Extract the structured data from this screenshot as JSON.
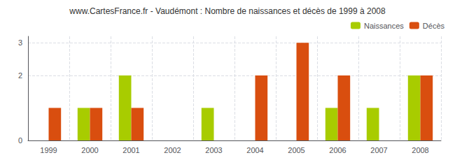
{
  "chart_data": {
    "type": "bar",
    "title": "www.CartesFrance.fr - Vaudémont : Nombre de naissances et décès de 1999 à 2008",
    "categories": [
      "1999",
      "2000",
      "2001",
      "2002",
      "2003",
      "2004",
      "2005",
      "2006",
      "2007",
      "2008"
    ],
    "series": [
      {
        "name": "Naissances",
        "color": "#a8cc00",
        "values": [
          0,
          1,
          2,
          0,
          1,
          0,
          0,
          1,
          1,
          2
        ]
      },
      {
        "name": "Décès",
        "color": "#d94e0f",
        "values": [
          1,
          1,
          1,
          0,
          0,
          2,
          3,
          2,
          0,
          2
        ]
      }
    ],
    "ylim": [
      0,
      3.2
    ],
    "yticks": [
      0,
      2,
      3
    ],
    "grid": true,
    "legend": "upper right"
  }
}
